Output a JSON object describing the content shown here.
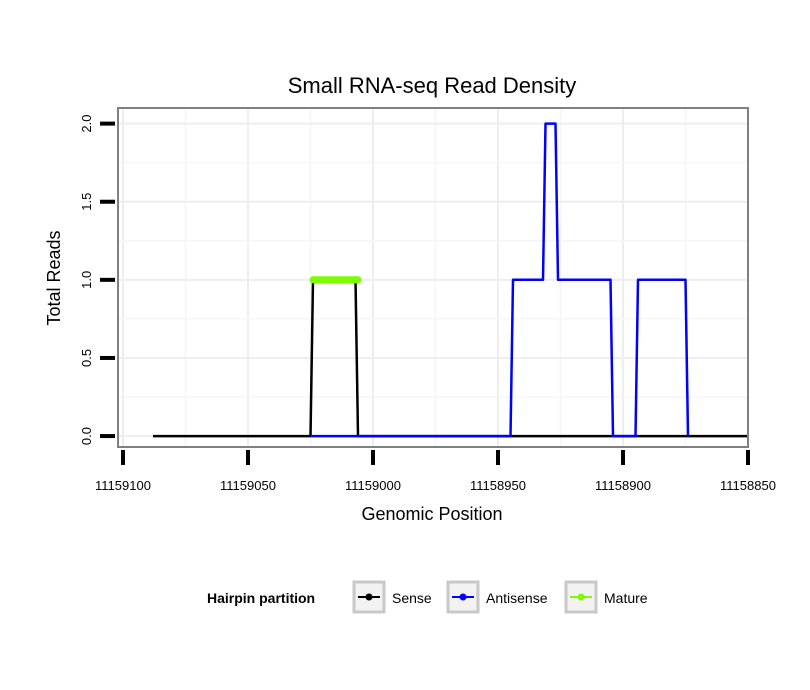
{
  "chart_data": {
    "type": "line",
    "title": "Small RNA-seq Read Density",
    "xlabel": "Genomic Position",
    "ylabel": "Total Reads",
    "xlim": [
      11159102,
      11158850
    ],
    "x_reversed": true,
    "ylim": [
      -0.07,
      2.1
    ],
    "x_ticks": [
      11159100,
      11159050,
      11159000,
      11158950,
      11158900,
      11158850
    ],
    "x_tick_labels": [
      "11159100",
      "11159050",
      "11159000",
      "11158950",
      "11158900",
      "11158850"
    ],
    "y_ticks": [
      0.0,
      0.5,
      1.0,
      1.5,
      2.0
    ],
    "y_tick_labels": [
      "0.0",
      "0.5",
      "1.0",
      "1.5",
      "2.0"
    ],
    "grid": true,
    "legend_position": "bottom",
    "legend_title": "Hairpin partition",
    "series": [
      {
        "name": "Sense",
        "color": "#000000",
        "x": [
          11159088,
          11159025,
          11159024,
          11159007,
          11159006,
          11158850
        ],
        "y": [
          0,
          0,
          1,
          1,
          0,
          0
        ]
      },
      {
        "name": "Antisense",
        "color": "#0000ff",
        "x": [
          11159025,
          11158945,
          11158944,
          11158932,
          11158931,
          11158927,
          11158926,
          11158905,
          11158904,
          11158895,
          11158894,
          11158875,
          11158874
        ],
        "y": [
          0,
          0,
          1,
          1,
          2,
          2,
          1,
          1,
          0,
          0,
          1,
          1,
          0
        ]
      },
      {
        "name": "Mature",
        "color": "#7cfc00",
        "x": [
          11159024,
          11159006
        ],
        "y": [
          1,
          1
        ]
      }
    ]
  }
}
